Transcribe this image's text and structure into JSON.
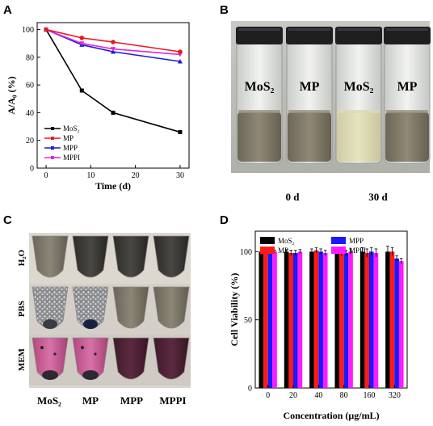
{
  "panels": {
    "a": "A",
    "b": "B",
    "c": "C",
    "d": "D"
  },
  "chart_data": [
    {
      "type": "line",
      "panel": "A",
      "xlabel": "Time (d)",
      "ylabel": "A/A₀ (%)",
      "xlim": [
        -2,
        32
      ],
      "ylim": [
        0,
        105
      ],
      "xticks": [
        0,
        10,
        20,
        30
      ],
      "yticks": [
        0,
        20,
        40,
        60,
        80,
        100
      ],
      "x": [
        0,
        8,
        15,
        30
      ],
      "series": [
        {
          "name": "MoS₂",
          "color": "#000000",
          "values": [
            100,
            56,
            40,
            26
          ]
        },
        {
          "name": "MP",
          "color": "#e8191e",
          "values": [
            100,
            94,
            91,
            84
          ]
        },
        {
          "name": "MPP",
          "color": "#1c1cd8",
          "values": [
            100,
            89,
            84,
            77
          ]
        },
        {
          "name": "MPPI",
          "color": "#e026e0",
          "values": [
            100,
            90,
            86,
            82
          ]
        }
      ],
      "legend": "bottom-left",
      "grid": false
    },
    {
      "type": "bar",
      "panel": "D",
      "xlabel": "Concentration (μg/mL)",
      "ylabel": "Cell Viability (%)",
      "ylim": [
        0,
        115
      ],
      "yticks": [
        0,
        50,
        100
      ],
      "categories": [
        "0",
        "20",
        "40",
        "80",
        "160",
        "320"
      ],
      "series": [
        {
          "name": "MoS₂",
          "color": "#000000",
          "values": [
            100,
            100,
            100,
            100,
            100,
            100
          ],
          "errors": [
            1,
            1.5,
            2,
            1.5,
            3,
            4
          ]
        },
        {
          "name": "MP",
          "color": "#ff1a1a",
          "values": [
            100,
            99,
            101,
            99,
            99,
            100
          ],
          "errors": [
            1,
            2,
            2,
            2,
            3,
            3
          ]
        },
        {
          "name": "MPP",
          "color": "#1a1aff",
          "values": [
            100,
            99,
            100,
            99,
            100,
            95
          ],
          "errors": [
            1,
            2,
            2,
            2,
            3,
            2
          ]
        },
        {
          "name": "MPPI",
          "color": "#ff1aff",
          "values": [
            100,
            100,
            99,
            100,
            99,
            93
          ],
          "errors": [
            1,
            1.5,
            2,
            2,
            3,
            2
          ]
        }
      ],
      "legend": "top",
      "grid": false
    }
  ],
  "photo_b": {
    "vials": [
      "MoS₂",
      "MP",
      "MoS₂",
      "MP"
    ],
    "times": [
      "0 d",
      "30 d"
    ]
  },
  "photo_c": {
    "rows": [
      "H₂O",
      "PBS",
      "MEM"
    ],
    "columns": [
      "MoS₂",
      "MP",
      "MPP",
      "MPPI"
    ]
  }
}
